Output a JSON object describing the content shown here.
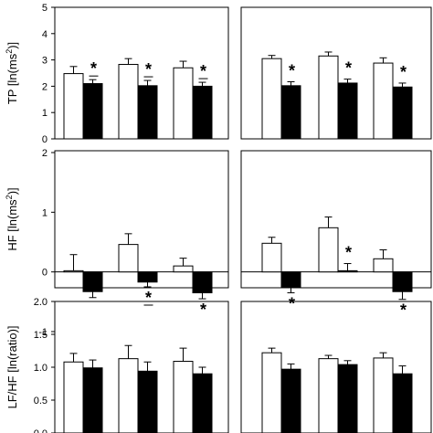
{
  "chart_data": [
    {
      "type": "bar",
      "ylabel": "TP [ln(ms",
      "ylabel_sup": "2",
      "ylabel_end": ")]",
      "ylim": [
        0,
        5
      ],
      "yticks": [
        "0",
        "1",
        "2",
        "3",
        "4",
        "5"
      ],
      "panels": [
        {
          "groups": [
            {
              "white": 2.48,
              "white_err": 0.27,
              "black": 2.1,
              "black_err": 0.15,
              "star": true,
              "star_under": true
            },
            {
              "white": 2.83,
              "white_err": 0.22,
              "black": 2.02,
              "black_err": 0.2,
              "star": true,
              "star_under": true
            },
            {
              "white": 2.7,
              "white_err": 0.25,
              "black": 2.0,
              "black_err": 0.15,
              "star": true,
              "star_under": true
            }
          ]
        },
        {
          "groups": [
            {
              "white": 3.05,
              "white_err": 0.12,
              "black": 2.02,
              "black_err": 0.15,
              "star": true,
              "star_under": false
            },
            {
              "white": 3.15,
              "white_err": 0.15,
              "black": 2.12,
              "black_err": 0.15,
              "star": true,
              "star_under": false
            },
            {
              "white": 2.88,
              "white_err": 0.2,
              "black": 1.97,
              "black_err": 0.15,
              "star": true,
              "star_under": false
            }
          ]
        }
      ]
    },
    {
      "type": "bar",
      "ylabel": "HF [ln(ms",
      "ylabel_sup": "2",
      "ylabel_end": ")]",
      "ylim": [
        -1,
        2
      ],
      "yticks": [
        "-1",
        "0",
        "1",
        "2"
      ],
      "panels": [
        {
          "groups": [
            {
              "white": 0.02,
              "white_err": 0.27,
              "black": -0.33,
              "black_err": 0.1,
              "star": false,
              "star_under": false
            },
            {
              "white": 0.46,
              "white_err": 0.18,
              "black": -0.17,
              "black_err": 0.08,
              "star": true,
              "star_under": true
            },
            {
              "white": 0.1,
              "white_err": 0.13,
              "black": -0.35,
              "black_err": 0.1,
              "star": true,
              "star_under": false
            }
          ]
        },
        {
          "groups": [
            {
              "white": 0.48,
              "white_err": 0.1,
              "black": -0.25,
              "black_err": 0.1,
              "star": true,
              "star_under": false
            },
            {
              "white": 0.74,
              "white_err": 0.18,
              "black": 0.02,
              "black_err": 0.12,
              "star": true,
              "star_under": false
            },
            {
              "white": 0.22,
              "white_err": 0.15,
              "black": -0.33,
              "black_err": 0.13,
              "star": true,
              "star_under": false
            }
          ]
        }
      ]
    },
    {
      "type": "bar",
      "ylabel": "LF/HF [ln(ratio)]",
      "ylabel_sup": "",
      "ylabel_end": "",
      "ylim": [
        0.0,
        2.0
      ],
      "yticks": [
        "0.0",
        "0.5",
        "1.0",
        "1.5",
        "2.0"
      ],
      "panels": [
        {
          "groups": [
            {
              "white": 1.08,
              "white_err": 0.13,
              "black": 0.99,
              "black_err": 0.12,
              "star": false,
              "star_under": false
            },
            {
              "white": 1.13,
              "white_err": 0.2,
              "black": 0.94,
              "black_err": 0.14,
              "star": false,
              "star_under": false
            },
            {
              "white": 1.09,
              "white_err": 0.2,
              "black": 0.9,
              "black_err": 0.1,
              "star": false,
              "star_under": false
            }
          ]
        },
        {
          "groups": [
            {
              "white": 1.22,
              "white_err": 0.07,
              "black": 0.97,
              "black_err": 0.08,
              "star": false,
              "star_under": false
            },
            {
              "white": 1.13,
              "white_err": 0.05,
              "black": 1.04,
              "black_err": 0.06,
              "star": false,
              "star_under": false
            },
            {
              "white": 1.14,
              "white_err": 0.08,
              "black": 0.9,
              "black_err": 0.12,
              "star": false,
              "star_under": false
            }
          ]
        }
      ]
    }
  ]
}
